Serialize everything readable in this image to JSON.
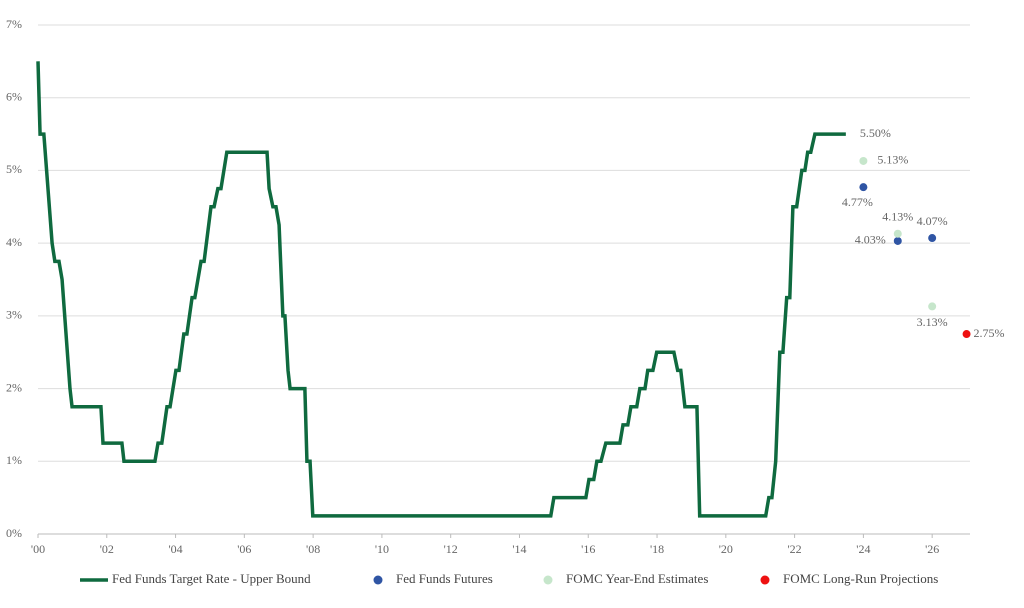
{
  "chart_data": {
    "type": "line",
    "xlim": [
      2000,
      2027.1
    ],
    "ylim": [
      0,
      7
    ],
    "xticks": [
      {
        "value": 2000,
        "label": "'00"
      },
      {
        "value": 2002,
        "label": "'02"
      },
      {
        "value": 2004,
        "label": "'04"
      },
      {
        "value": 2006,
        "label": "'06"
      },
      {
        "value": 2008,
        "label": "'08"
      },
      {
        "value": 2010,
        "label": "'10"
      },
      {
        "value": 2012,
        "label": "'12"
      },
      {
        "value": 2014,
        "label": "'14"
      },
      {
        "value": 2016,
        "label": "'16"
      },
      {
        "value": 2018,
        "label": "'18"
      },
      {
        "value": 2020,
        "label": "'20"
      },
      {
        "value": 2022,
        "label": "'22"
      },
      {
        "value": 2024,
        "label": "'24"
      },
      {
        "value": 2026,
        "label": "'26"
      }
    ],
    "yticks": [
      {
        "value": 0,
        "label": "0%"
      },
      {
        "value": 1,
        "label": "1%"
      },
      {
        "value": 2,
        "label": "2%"
      },
      {
        "value": 3,
        "label": "3%"
      },
      {
        "value": 4,
        "label": "4%"
      },
      {
        "value": 5,
        "label": "5%"
      },
      {
        "value": 6,
        "label": "6%"
      },
      {
        "value": 7,
        "label": "7%"
      }
    ],
    "grid": true,
    "legend": "bottom",
    "series": [
      {
        "name": "Fed Funds Target Rate - Upper Bound",
        "type": "line",
        "color": "#0f6a3f",
        "x": [
          2000.0,
          2000.03,
          2000.06,
          2000.17,
          2000.41,
          2000.49,
          2000.61,
          2000.7,
          2000.93,
          2000.99,
          2001.83,
          2001.89,
          2002.44,
          2002.5,
          2003.4,
          2003.49,
          2003.6,
          2003.75,
          2003.84,
          2004.01,
          2004.1,
          2004.24,
          2004.33,
          2004.48,
          2004.56,
          2004.74,
          2004.83,
          2005.03,
          2005.12,
          2005.23,
          2005.32,
          2005.49,
          2006.66,
          2006.72,
          2006.83,
          2006.92,
          2007.01,
          2007.12,
          2007.18,
          2007.27,
          2007.33,
          2007.76,
          2007.82,
          2007.91,
          2007.99,
          2014.91,
          2015.0,
          2015.93,
          2016.02,
          2016.16,
          2016.25,
          2016.37,
          2016.51,
          2016.92,
          2017.01,
          2017.15,
          2017.24,
          2017.41,
          2017.5,
          2017.65,
          2017.73,
          2017.88,
          2017.99,
          2018.49,
          2018.6,
          2018.69,
          2018.81,
          2019.16,
          2019.24,
          2021.16,
          2021.25,
          2021.34,
          2021.45,
          2021.57,
          2021.66,
          2021.77,
          2021.86,
          2021.95,
          2022.06,
          2022.21,
          2022.3,
          2022.38,
          2022.47,
          2022.59,
          2023.49
        ],
        "values": [
          6.5,
          6.0,
          5.5,
          5.5,
          4.0,
          3.75,
          3.75,
          3.5,
          2.0,
          1.75,
          1.75,
          1.25,
          1.25,
          1.0,
          1.0,
          1.25,
          1.25,
          1.75,
          1.75,
          2.25,
          2.25,
          2.75,
          2.75,
          3.25,
          3.25,
          3.75,
          3.75,
          4.5,
          4.5,
          4.75,
          4.75,
          5.25,
          5.25,
          4.75,
          4.5,
          4.5,
          4.25,
          3.0,
          3.0,
          2.25,
          2.0,
          2.0,
          1.0,
          1.0,
          0.25,
          0.25,
          0.5,
          0.5,
          0.75,
          0.75,
          1.0,
          1.0,
          1.25,
          1.25,
          1.5,
          1.5,
          1.75,
          1.75,
          2.0,
          2.0,
          2.25,
          2.25,
          2.5,
          2.5,
          2.25,
          2.25,
          1.75,
          1.75,
          0.25,
          0.25,
          0.5,
          0.5,
          1.0,
          2.5,
          2.5,
          3.25,
          3.25,
          4.5,
          4.5,
          5.0,
          5.0,
          5.25,
          5.25,
          5.5,
          5.5
        ]
      },
      {
        "name": "Fed Funds Futures",
        "type": "scatter",
        "color": "#2f55a4",
        "x": [
          2024,
          2025,
          2026
        ],
        "values": [
          4.77,
          4.03,
          4.07
        ],
        "value_labels": [
          "4.77%",
          "4.03%",
          "4.07%"
        ]
      },
      {
        "name": "FOMC Year-End Estimates",
        "type": "scatter",
        "color": "#c6e6cb",
        "x": [
          2024,
          2025,
          2026
        ],
        "values": [
          5.13,
          4.13,
          3.13
        ],
        "value_labels": [
          "5.13%",
          "4.13%",
          "3.13%"
        ]
      },
      {
        "name": "FOMC Long-Run Projections",
        "type": "scatter",
        "color": "#ee1111",
        "x": [
          2027
        ],
        "values": [
          2.75
        ],
        "value_labels": [
          "2.75%"
        ]
      }
    ],
    "annotations": [
      {
        "text": "5.50%",
        "x": 2023.49,
        "y": 5.5
      }
    ]
  }
}
